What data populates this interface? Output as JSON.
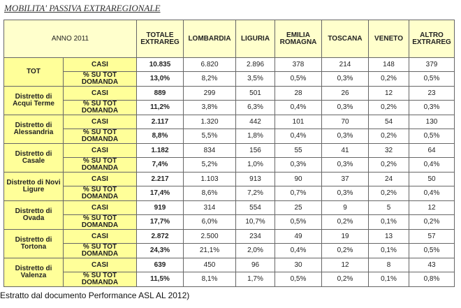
{
  "title": "MOBILITA' PASSIVA EXTRAREGIONALE",
  "table": {
    "corner": "ANNO 2011",
    "headers": [
      "TOTALE EXTRAREG",
      "LOMBARDIA",
      "LIGURIA",
      "EMILIA ROMAGNA",
      "TOSCANA",
      "VENETO",
      "ALTRO EXTRAREG"
    ],
    "groups": [
      {
        "label": "TOT",
        "rows": [
          {
            "label": "CASI",
            "cells": [
              "10.835",
              "6.820",
              "2.896",
              "378",
              "214",
              "148",
              "379"
            ]
          },
          {
            "label": "% SU TOT DOMANDA",
            "cells": [
              "13,0%",
              "8,2%",
              "3,5%",
              "0,5%",
              "0,3%",
              "0,2%",
              "0,5%"
            ]
          }
        ]
      },
      {
        "label": "Distretto di Acqui Terme",
        "rows": [
          {
            "label": "CASI",
            "cells": [
              "889",
              "299",
              "501",
              "28",
              "26",
              "12",
              "23"
            ]
          },
          {
            "label": "% SU TOT DOMANDA",
            "cells": [
              "11,2%",
              "3,8%",
              "6,3%",
              "0,4%",
              "0,3%",
              "0,2%",
              "0,3%"
            ]
          }
        ]
      },
      {
        "label": "Distretto di Alessandria",
        "rows": [
          {
            "label": "CASI",
            "cells": [
              "2.117",
              "1.320",
              "442",
              "101",
              "70",
              "54",
              "130"
            ]
          },
          {
            "label": "% SU TOT DOMANDA",
            "cells": [
              "8,8%",
              "5,5%",
              "1,8%",
              "0,4%",
              "0,3%",
              "0,2%",
              "0,5%"
            ]
          }
        ]
      },
      {
        "label": "Distretto di Casale",
        "rows": [
          {
            "label": "CASI",
            "cells": [
              "1.182",
              "834",
              "156",
              "55",
              "41",
              "32",
              "64"
            ]
          },
          {
            "label": "% SU TOT DOMANDA",
            "cells": [
              "7,4%",
              "5,2%",
              "1,0%",
              "0,3%",
              "0,3%",
              "0,2%",
              "0,4%"
            ]
          }
        ]
      },
      {
        "label": "Distretto di Novi Ligure",
        "rows": [
          {
            "label": "CASI",
            "cells": [
              "2.217",
              "1.103",
              "913",
              "90",
              "37",
              "24",
              "50"
            ]
          },
          {
            "label": "% SU TOT DOMANDA",
            "cells": [
              "17,4%",
              "8,6%",
              "7,2%",
              "0,7%",
              "0,3%",
              "0,2%",
              "0,4%"
            ]
          }
        ]
      },
      {
        "label": "Distretto di Ovada",
        "rows": [
          {
            "label": "CASI",
            "cells": [
              "919",
              "314",
              "554",
              "25",
              "9",
              "5",
              "12"
            ]
          },
          {
            "label": "% SU TOT DOMANDA",
            "cells": [
              "17,7%",
              "6,0%",
              "10,7%",
              "0,5%",
              "0,2%",
              "0,1%",
              "0,2%"
            ]
          }
        ]
      },
      {
        "label": "Distretto di Tortona",
        "rows": [
          {
            "label": "CASI",
            "cells": [
              "2.872",
              "2.500",
              "234",
              "49",
              "19",
              "13",
              "57"
            ]
          },
          {
            "label": "% SU TOT DOMANDA",
            "cells": [
              "24,3%",
              "21,1%",
              "2,0%",
              "0,4%",
              "0,2%",
              "0,1%",
              "0,5%"
            ]
          }
        ]
      },
      {
        "label": "Distretto di Valenza",
        "rows": [
          {
            "label": "CASI",
            "cells": [
              "639",
              "450",
              "96",
              "30",
              "12",
              "8",
              "43"
            ]
          },
          {
            "label": "% SU TOT DOMANDA",
            "cells": [
              "11,5%",
              "8,1%",
              "1,7%",
              "0,5%",
              "0,2%",
              "0,1%",
              "0,8%"
            ]
          }
        ]
      }
    ]
  },
  "caption": "Estratto dal documento Performance ASL AL 2012)"
}
